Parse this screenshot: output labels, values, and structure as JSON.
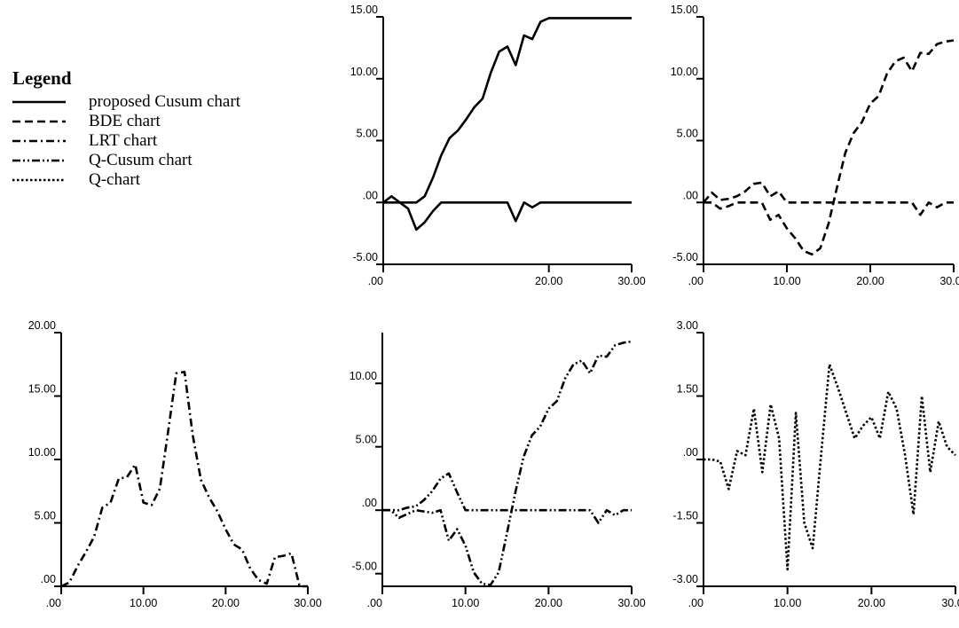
{
  "legend": {
    "title": "Legend",
    "items": [
      {
        "label": "proposed Cusum chart",
        "style": "solid"
      },
      {
        "label": "BDE chart",
        "style": "dashed"
      },
      {
        "label": "LRT chart",
        "style": "dashdot"
      },
      {
        "label": "Q-Cusum chart",
        "style": "dashdotdot"
      },
      {
        "label": "Q-chart",
        "style": "dotted"
      }
    ]
  },
  "chart_data": [
    {
      "id": "proposed-cusum",
      "type": "line",
      "line_style": "solid",
      "xlim": [
        0,
        30
      ],
      "ylim": [
        -5,
        15
      ],
      "x_ticks": [
        ".00",
        "20.00",
        "30.00"
      ],
      "y_ticks": [
        "-5.00",
        ".00",
        "5.00",
        "10.00",
        "15.00"
      ],
      "series": [
        {
          "x": [
            0,
            1,
            2,
            3,
            4,
            5,
            6,
            7,
            8,
            9,
            10,
            11,
            12,
            13,
            14,
            15,
            16,
            17,
            18,
            19,
            20,
            21,
            22,
            23,
            24,
            25,
            26,
            27,
            28,
            29,
            30
          ],
          "values": [
            0,
            0.5,
            0,
            0,
            0,
            0.5,
            2,
            3.8,
            5.2,
            5.8,
            6.7,
            7.7,
            8.4,
            10.5,
            12.2,
            12.6,
            11.1,
            13.5,
            13.2,
            14.6,
            14.9,
            14.9,
            14.9,
            14.9,
            14.9,
            14.9,
            14.9,
            14.9,
            14.9,
            14.9,
            14.9
          ]
        },
        {
          "x": [
            0,
            1,
            2,
            3,
            4,
            5,
            6,
            7,
            8,
            9,
            10,
            11,
            12,
            13,
            14,
            15,
            16,
            17,
            18,
            19,
            20,
            21,
            22,
            23,
            24,
            25,
            26,
            27,
            28,
            29,
            30
          ],
          "values": [
            0,
            0,
            0,
            -0.5,
            -2.2,
            -1.6,
            -0.7,
            0,
            0,
            0,
            0,
            0,
            0,
            0,
            0,
            0,
            -1.5,
            0,
            -0.4,
            0,
            0,
            0,
            0,
            0,
            0,
            0,
            0,
            0,
            0,
            0,
            0
          ]
        }
      ]
    },
    {
      "id": "bde",
      "type": "line",
      "line_style": "dashed",
      "xlim": [
        0,
        30
      ],
      "ylim": [
        -5,
        15
      ],
      "x_ticks": [
        ".00",
        "10.00",
        "20.00",
        "30.00"
      ],
      "y_ticks": [
        "-5.00",
        ".00",
        "5.00",
        "10.00",
        "15.00"
      ],
      "series": [
        {
          "x": [
            0,
            1,
            2,
            3,
            4,
            5,
            6,
            7,
            8,
            9,
            10,
            11,
            12,
            13,
            14,
            15,
            16,
            17,
            18,
            19,
            20,
            21,
            22,
            23,
            24,
            25,
            26,
            27,
            28,
            29,
            30
          ],
          "values": [
            0,
            0.8,
            0.2,
            0.3,
            0.5,
            0.9,
            1.5,
            1.6,
            0.5,
            0.9,
            0,
            0,
            0,
            0,
            0,
            0,
            0,
            0,
            0,
            0,
            0,
            0,
            0,
            0,
            0,
            0,
            -1,
            0,
            -0.4,
            0,
            0
          ]
        },
        {
          "x": [
            0,
            1,
            2,
            3,
            4,
            5,
            6,
            7,
            8,
            9,
            10,
            11,
            12,
            13,
            14,
            15,
            16,
            17,
            18,
            19,
            20,
            21,
            22,
            23,
            24,
            25,
            26,
            27,
            28,
            29,
            30
          ],
          "values": [
            0,
            0,
            -0.5,
            -0.3,
            0,
            0,
            0,
            0,
            -1.4,
            -1,
            -2.1,
            -2.9,
            -3.9,
            -4.2,
            -3.7,
            -1.7,
            1.2,
            4,
            5.6,
            6.5,
            8,
            8.6,
            10.4,
            11.4,
            11.7,
            10.6,
            12.1,
            12,
            12.8,
            13,
            13.1
          ]
        }
      ]
    },
    {
      "id": "lrt",
      "type": "line",
      "line_style": "dashdot",
      "xlim": [
        0,
        30
      ],
      "ylim": [
        0,
        20
      ],
      "x_ticks": [
        ".00",
        "10.00",
        "20.00",
        "30.00"
      ],
      "y_ticks": [
        ".00",
        "5.00",
        "10.00",
        "15.00",
        "20.00"
      ],
      "series": [
        {
          "x": [
            0,
            1,
            2,
            3,
            4,
            5,
            6,
            7,
            8,
            9,
            10,
            11,
            12,
            13,
            14,
            15,
            16,
            17,
            18,
            19,
            20,
            21,
            22,
            23,
            24,
            25,
            26,
            27,
            28,
            29,
            30
          ],
          "values": [
            0,
            0.3,
            1.6,
            2.7,
            3.9,
            6.2,
            6.6,
            8.5,
            8.6,
            9.6,
            6.6,
            6.4,
            7.7,
            12.2,
            16.8,
            16.9,
            11.9,
            8.4,
            7,
            5.9,
            4.5,
            3.3,
            2.9,
            1.4,
            0.5,
            0.2,
            2.3,
            2.4,
            2.6,
            0,
            0
          ]
        }
      ]
    },
    {
      "id": "q-cusum",
      "type": "line",
      "line_style": "dashdotdot",
      "xlim": [
        0,
        30
      ],
      "ylim": [
        -6,
        14
      ],
      "x_ticks": [
        ".00",
        "10.00",
        "20.00",
        "30.00"
      ],
      "y_ticks": [
        "-5.00",
        ".00",
        "5.00",
        "10.00"
      ],
      "series": [
        {
          "x": [
            0,
            1,
            2,
            3,
            4,
            5,
            6,
            7,
            8,
            9,
            10,
            11,
            12,
            13,
            14,
            15,
            16,
            17,
            18,
            19,
            20,
            21,
            22,
            23,
            24,
            25,
            26,
            27,
            28,
            29,
            30
          ],
          "values": [
            0,
            0,
            0,
            0.2,
            0.3,
            0.8,
            1.5,
            2.5,
            2.9,
            1.4,
            0,
            0,
            0,
            0,
            0,
            0,
            0,
            0,
            0,
            0,
            0,
            0,
            0,
            0,
            0,
            0,
            -1,
            0,
            -0.4,
            0,
            0
          ]
        },
        {
          "x": [
            0,
            1,
            2,
            3,
            4,
            5,
            6,
            7,
            8,
            9,
            10,
            11,
            12,
            13,
            14,
            15,
            16,
            17,
            18,
            19,
            20,
            21,
            22,
            23,
            24,
            25,
            26,
            27,
            28,
            29,
            30
          ],
          "values": [
            0,
            0,
            -0.6,
            -0.3,
            0,
            -0.1,
            -0.2,
            0,
            -2.4,
            -1.5,
            -2.8,
            -4.9,
            -5.8,
            -5.9,
            -4.9,
            -1.8,
            1.4,
            4.2,
            5.9,
            6.6,
            8,
            8.6,
            10.4,
            11.5,
            11.8,
            10.8,
            12.2,
            12.1,
            13,
            13.2,
            13.3
          ]
        }
      ]
    },
    {
      "id": "q-chart",
      "type": "line",
      "line_style": "dotted",
      "xlim": [
        0,
        30
      ],
      "ylim": [
        -3,
        3
      ],
      "x_ticks": [
        ".00",
        "10.00",
        "20.00",
        "30.00"
      ],
      "y_ticks": [
        "-3.00",
        "-1.50",
        ".00",
        "1.50",
        "3.00"
      ],
      "series": [
        {
          "x": [
            0,
            1,
            2,
            3,
            4,
            5,
            6,
            7,
            8,
            9,
            10,
            11,
            12,
            13,
            14,
            15,
            16,
            17,
            18,
            19,
            20,
            21,
            22,
            23,
            24,
            25,
            26,
            27,
            28,
            29,
            30
          ],
          "values": [
            0,
            0,
            -0.05,
            -0.7,
            0.2,
            0.1,
            1.2,
            -0.3,
            1.3,
            0.5,
            -2.6,
            1.1,
            -1.5,
            -2.1,
            0.1,
            2.25,
            1.7,
            1.1,
            0.5,
            0.8,
            1.0,
            0.5,
            1.6,
            1.2,
            0.1,
            -1.3,
            1.5,
            -0.3,
            0.9,
            0.3,
            0.1
          ]
        }
      ]
    }
  ]
}
